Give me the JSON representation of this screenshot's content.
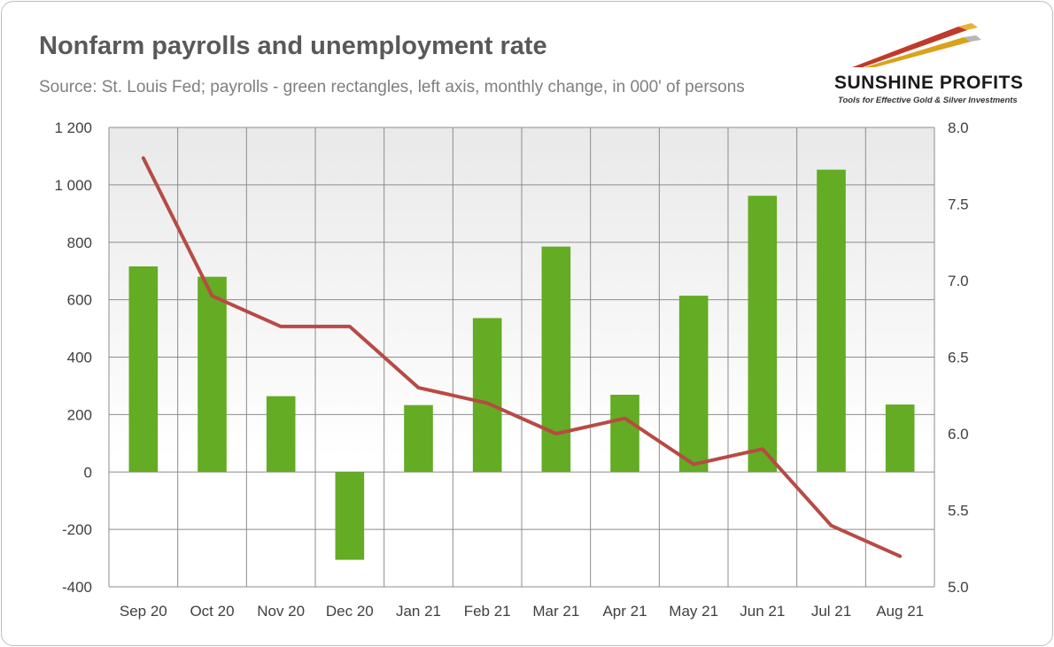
{
  "header": {
    "title": "Nonfarm payrolls and unemployment rate",
    "subtitle": "Source: St. Louis Fed; payrolls - green rectangles, left axis, monthly change, in 000' of persons"
  },
  "logo": {
    "name": "SUNSHINE PROFITS",
    "tagline": "Tools for Effective Gold & Silver Investments"
  },
  "colors": {
    "bar": "#63ac23",
    "line": "#b84a45",
    "grid": "#8c8c8c"
  },
  "chart_data": {
    "type": "bar+line",
    "title": "Nonfarm payrolls and unemployment rate",
    "categories": [
      "Sep 20",
      "Oct 20",
      "Nov 20",
      "Dec 20",
      "Jan 21",
      "Feb 21",
      "Mar 21",
      "Apr 21",
      "May 21",
      "Jun 21",
      "Jul 21",
      "Aug 21"
    ],
    "series": [
      {
        "name": "Nonfarm payrolls (monthly change, 000')",
        "type": "bar",
        "axis": "left",
        "values": [
          716,
          680,
          264,
          -306,
          233,
          536,
          785,
          269,
          614,
          962,
          1053,
          235
        ]
      },
      {
        "name": "Unemployment rate (%)",
        "type": "line",
        "axis": "right",
        "values": [
          7.8,
          6.9,
          6.7,
          6.7,
          6.3,
          6.2,
          6.0,
          6.1,
          5.8,
          5.9,
          5.4,
          5.2
        ]
      }
    ],
    "left_axis": {
      "min": -400,
      "max": 1200,
      "step": 200,
      "tick_labels": [
        "-400",
        "-200",
        "0",
        "200",
        "400",
        "600",
        "800",
        "1 000",
        "1 200"
      ]
    },
    "right_axis": {
      "min": 5.0,
      "max": 8.0,
      "step": 0.5,
      "tick_labels": [
        "5.0",
        "5.5",
        "6.0",
        "6.5",
        "7.0",
        "7.5",
        "8.0"
      ]
    },
    "grid": true
  }
}
